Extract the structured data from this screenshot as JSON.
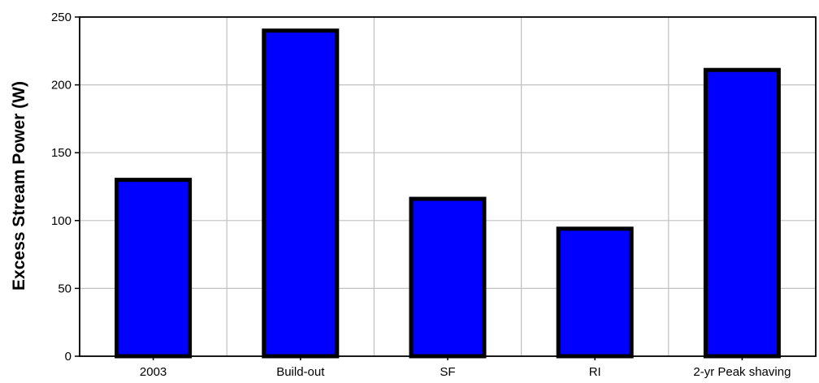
{
  "chart_data": {
    "type": "bar",
    "title": "",
    "xlabel": "",
    "ylabel": "Excess Stream Power (W)",
    "categories": [
      "2003",
      "Build-out",
      "SF",
      "RI",
      "2-yr Peak shaving"
    ],
    "values": [
      130,
      240,
      116,
      94,
      211
    ],
    "ylim": [
      0,
      250
    ],
    "yticks": [
      0,
      50,
      100,
      150,
      200,
      250
    ],
    "grid": true,
    "legend": "none",
    "colors": {
      "bar_fill": "#0000ff",
      "bar_edge": "#000000",
      "grid": "#c0c0c0",
      "axis": "#000000"
    }
  }
}
